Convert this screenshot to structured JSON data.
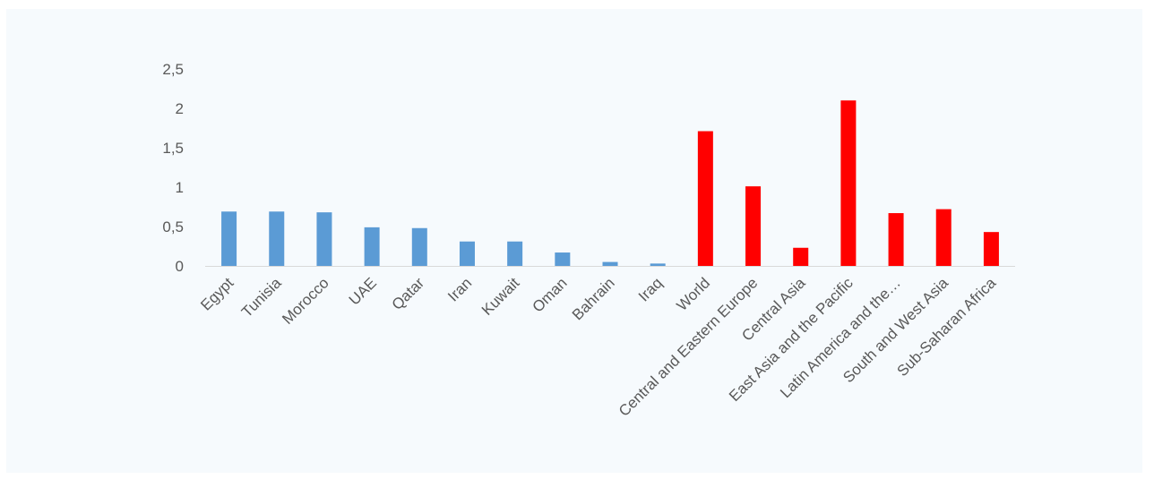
{
  "chart_data": {
    "type": "bar",
    "title": "",
    "xlabel": "",
    "ylabel": "",
    "ylim": [
      0,
      2.5
    ],
    "yticks": [
      {
        "value": 0,
        "label": "0"
      },
      {
        "value": 0.5,
        "label": "0,5"
      },
      {
        "value": 1,
        "label": "1"
      },
      {
        "value": 1.5,
        "label": "1,5"
      },
      {
        "value": 2,
        "label": "2"
      },
      {
        "value": 2.5,
        "label": "2,5"
      }
    ],
    "grid": false,
    "legend": "none",
    "colors": {
      "group_countries": "#5b9bd5",
      "group_regions": "#ff0000",
      "axis": "#d9d9d9"
    },
    "categories": [
      "Egypt",
      "Tunisia",
      "Morocco",
      "UAE",
      "Qatar",
      "Iran",
      "Kuwait",
      "Oman",
      "Bahrain",
      "Iraq",
      "World",
      "Central and Eastern Europe",
      "Central Asia",
      "East Asia and the Pacific",
      "Latin America and the…",
      "South and West Asia",
      "Sub-Saharan Africa"
    ],
    "values": [
      0.69,
      0.69,
      0.68,
      0.49,
      0.48,
      0.31,
      0.31,
      0.17,
      0.05,
      0.03,
      1.71,
      1.01,
      0.23,
      2.1,
      0.67,
      0.72,
      0.43
    ],
    "groups": [
      "countries",
      "countries",
      "countries",
      "countries",
      "countries",
      "countries",
      "countries",
      "countries",
      "countries",
      "countries",
      "regions",
      "regions",
      "regions",
      "regions",
      "regions",
      "regions",
      "regions"
    ]
  }
}
